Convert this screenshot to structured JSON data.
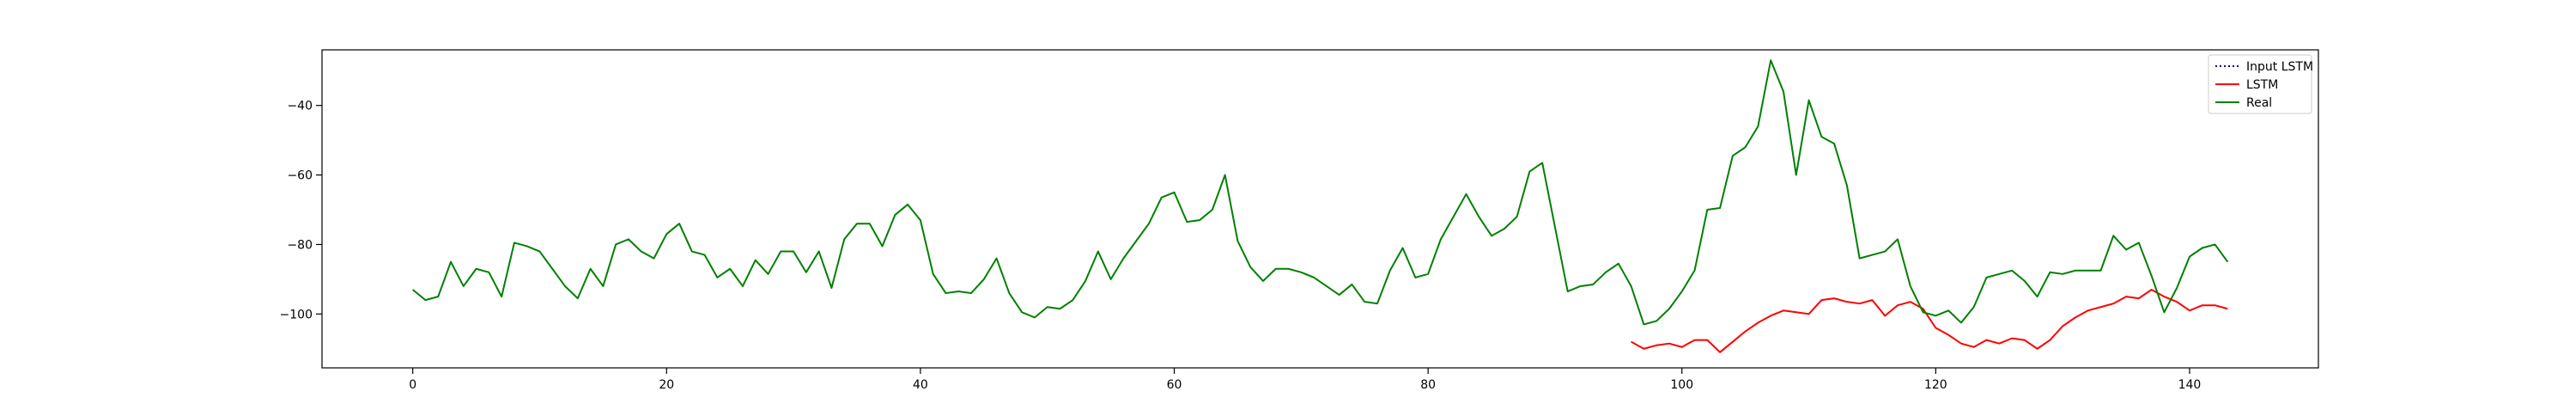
{
  "chart_data": {
    "type": "line",
    "title": "",
    "xlabel": "",
    "ylabel": "",
    "xlim": [
      -7.15,
      150.15
    ],
    "ylim": [
      -115.5,
      -24.0
    ],
    "xticks": [
      0,
      20,
      40,
      60,
      80,
      100,
      120,
      140
    ],
    "xtick_labels": [
      "0",
      "20",
      "40",
      "60",
      "80",
      "100",
      "120",
      "140"
    ],
    "yticks": [
      -100,
      -80,
      -60,
      -40
    ],
    "ytick_labels": [
      "−100",
      "−80",
      "−60",
      "−40"
    ],
    "grid": false,
    "legend_position": "top-right",
    "series": [
      {
        "name": "Input LSTM",
        "color": "#00008b",
        "style": "dotted",
        "x": [],
        "values": []
      },
      {
        "name": "LSTM",
        "color": "#ff0000",
        "style": "solid",
        "x": [
          96,
          97,
          98,
          99,
          100,
          101,
          102,
          103,
          104,
          105,
          106,
          107,
          108,
          109,
          110,
          111,
          112,
          113,
          114,
          115,
          116,
          117,
          118,
          119,
          120,
          121,
          122,
          123,
          124,
          125,
          126,
          127,
          128,
          129,
          130,
          131,
          132,
          133,
          134,
          135,
          136,
          137,
          138,
          139,
          140,
          141,
          142,
          143
        ],
        "values": [
          -108,
          -110,
          -109,
          -108.5,
          -109.5,
          -107.5,
          -107.5,
          -111,
          -108,
          -105,
          -102.5,
          -100.5,
          -99,
          -99.5,
          -100,
          -96,
          -95.5,
          -96.5,
          -97,
          -96,
          -100.5,
          -97.5,
          -96.5,
          -98.5,
          -104,
          -106,
          -108.5,
          -109.5,
          -107.5,
          -108.5,
          -107,
          -107.5,
          -110,
          -107.5,
          -103.5,
          -101,
          -99,
          -98,
          -97,
          -95,
          -95.5,
          -93,
          -95,
          -96.5,
          -99,
          -97.5,
          -97.5,
          -98.5
        ]
      },
      {
        "name": "Real",
        "color": "#008000",
        "style": "solid",
        "x": [
          0,
          1,
          2,
          3,
          4,
          5,
          6,
          7,
          8,
          9,
          10,
          11,
          12,
          13,
          14,
          15,
          16,
          17,
          18,
          19,
          20,
          21,
          22,
          23,
          24,
          25,
          26,
          27,
          28,
          29,
          30,
          31,
          32,
          33,
          34,
          35,
          36,
          37,
          38,
          39,
          40,
          41,
          42,
          43,
          44,
          45,
          46,
          47,
          48,
          49,
          50,
          51,
          52,
          53,
          54,
          55,
          56,
          57,
          58,
          59,
          60,
          61,
          62,
          63,
          64,
          65,
          66,
          67,
          68,
          69,
          70,
          71,
          72,
          73,
          74,
          75,
          76,
          77,
          78,
          79,
          80,
          81,
          82,
          83,
          84,
          85,
          86,
          87,
          88,
          89,
          90,
          91,
          92,
          93,
          94,
          95,
          96,
          97,
          98,
          99,
          100,
          101,
          102,
          103,
          104,
          105,
          106,
          107,
          108,
          109,
          110,
          111,
          112,
          113,
          114,
          115,
          116,
          117,
          118,
          119,
          120,
          121,
          122,
          123,
          124,
          125,
          126,
          127,
          128,
          129,
          130,
          131,
          132,
          133,
          134,
          135,
          136,
          137,
          138,
          139,
          140,
          141,
          142,
          143
        ],
        "values": [
          -93,
          -96,
          -95,
          -85,
          -92,
          -87,
          -88,
          -95,
          -79.5,
          -80.5,
          -82,
          -87,
          -92,
          -95.5,
          -87,
          -92,
          -80,
          -78.5,
          -82,
          -84,
          -77,
          -74,
          -82,
          -83,
          -89.5,
          -87,
          -92,
          -84.5,
          -88.5,
          -82,
          -82,
          -88,
          -82,
          -92.5,
          -78.5,
          -74,
          -74,
          -80.5,
          -71.5,
          -68.5,
          -73,
          -88.5,
          -94,
          -93.5,
          -94,
          -90,
          -84,
          -94,
          -99.5,
          -101,
          -98,
          -98.5,
          -96,
          -90.5,
          -82,
          -90,
          -84,
          -79,
          -74,
          -66.5,
          -65,
          -73.5,
          -73,
          -70,
          -60,
          -79,
          -86.5,
          -90.5,
          -87,
          -87,
          -88,
          -89.5,
          -92,
          -94.5,
          -91.5,
          -96.5,
          -97,
          -87.5,
          -81,
          -89.5,
          -88.5,
          -78.5,
          -72,
          -65.5,
          -72,
          -77.5,
          -75.5,
          -72,
          -59,
          -56.5,
          -75,
          -93.5,
          -92,
          -91.5,
          -88,
          -85.5,
          -92,
          -103,
          -102,
          -98.5,
          -93.5,
          -87.5,
          -70,
          -69.5,
          -54.5,
          -52,
          -46,
          -27,
          -36,
          -60,
          -38.5,
          -49,
          -51,
          -63,
          -84,
          -83,
          -82,
          -78.5,
          -92,
          -99.5,
          -100.5,
          -99,
          -102.5,
          -98,
          -89.5,
          -88.5,
          -87.5,
          -90.5,
          -95,
          -88,
          -88.5,
          -87.5,
          -87.5,
          -87.5,
          -77.5,
          -81.5,
          -79.5,
          -89,
          -99.5,
          -92.5,
          -83.5,
          -81,
          -80,
          -85
        ]
      }
    ]
  }
}
